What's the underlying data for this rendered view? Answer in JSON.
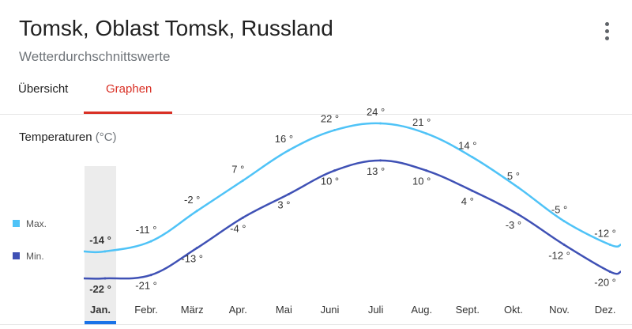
{
  "header": {
    "title": "Tomsk, Oblast Tomsk, Russland",
    "subtitle": "Wetterdurchschnittswerte",
    "more_icon": "more-vert-icon"
  },
  "tabs": [
    {
      "label": "Übersicht",
      "active": false
    },
    {
      "label": "Graphen",
      "active": true
    }
  ],
  "section": {
    "title": "Temperaturen",
    "unit": "(°C)"
  },
  "legend": [
    {
      "label": "Max.",
      "color": "#4fc3f7"
    },
    {
      "label": "Min.",
      "color": "#3f51b5"
    }
  ],
  "colors": {
    "accent": "#d93025",
    "selected": "#1a73e8",
    "max_line": "#4fc3f7",
    "min_line": "#3f51b5"
  },
  "chart_data": {
    "type": "line",
    "categories": [
      "Jan.",
      "Febr.",
      "März",
      "Apr.",
      "Mai",
      "Juni",
      "Juli",
      "Aug.",
      "Sept.",
      "Okt.",
      "Nov.",
      "Dez."
    ],
    "series": [
      {
        "name": "Max.",
        "values": [
          -14,
          -11,
          -2,
          7,
          16,
          22,
          24,
          21,
          14,
          5,
          -5,
          -12
        ],
        "labels": [
          "-14 °",
          "-11 °",
          "-2 °",
          "7 °",
          "16 °",
          "22 °",
          "24 °",
          "21 °",
          "14 °",
          "5 °",
          "-5 °",
          "-12 °"
        ]
      },
      {
        "name": "Min.",
        "values": [
          -22,
          -21,
          -13,
          -4,
          3,
          10,
          13,
          10,
          4,
          -3,
          -12,
          -20
        ],
        "labels": [
          "-22 °",
          "-21 °",
          "-13 °",
          "-4 °",
          "3 °",
          "10 °",
          "13 °",
          "10 °",
          "4 °",
          "-3 °",
          "-12 °",
          "-20 °"
        ]
      }
    ],
    "selected_category": "Jan.",
    "ylim": [
      -22,
      24
    ],
    "grid": false,
    "legend_position": "left"
  }
}
